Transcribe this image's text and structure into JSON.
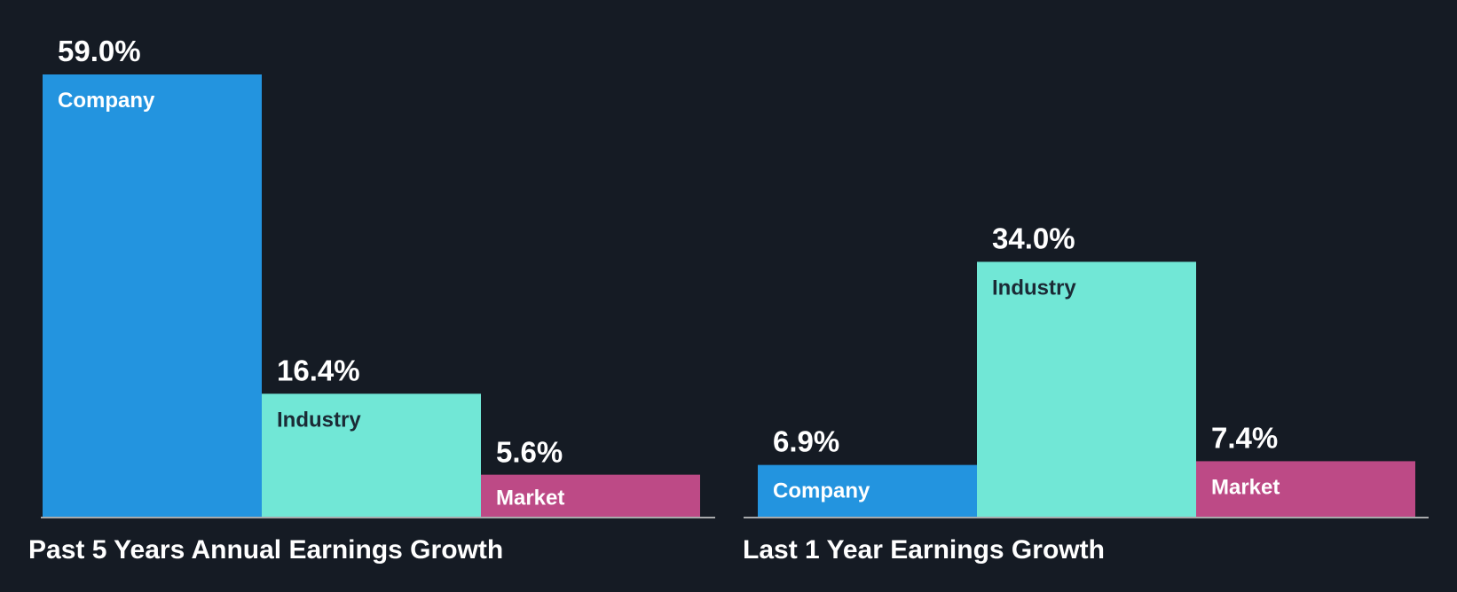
{
  "colors": {
    "background": "#151b24",
    "company": "#2394df",
    "industry": "#71e7d6",
    "market": "#bd4a86",
    "axis": "#d9d9d9"
  },
  "chart_data": [
    {
      "type": "bar",
      "title": "Past 5 Years Annual Earnings Growth",
      "categories": [
        "Company",
        "Industry",
        "Market"
      ],
      "values": [
        59.0,
        16.4,
        5.6
      ],
      "value_labels": [
        "59.0%",
        "16.4%",
        "5.6%"
      ],
      "ylim": [
        0,
        59.0
      ],
      "grid": false,
      "legend": "none"
    },
    {
      "type": "bar",
      "title": "Last 1 Year Earnings Growth",
      "categories": [
        "Company",
        "Industry",
        "Market"
      ],
      "values": [
        6.9,
        34.0,
        7.4
      ],
      "value_labels": [
        "6.9%",
        "34.0%",
        "7.4%"
      ],
      "ylim": [
        0,
        59.0
      ],
      "grid": false,
      "legend": "none"
    }
  ]
}
